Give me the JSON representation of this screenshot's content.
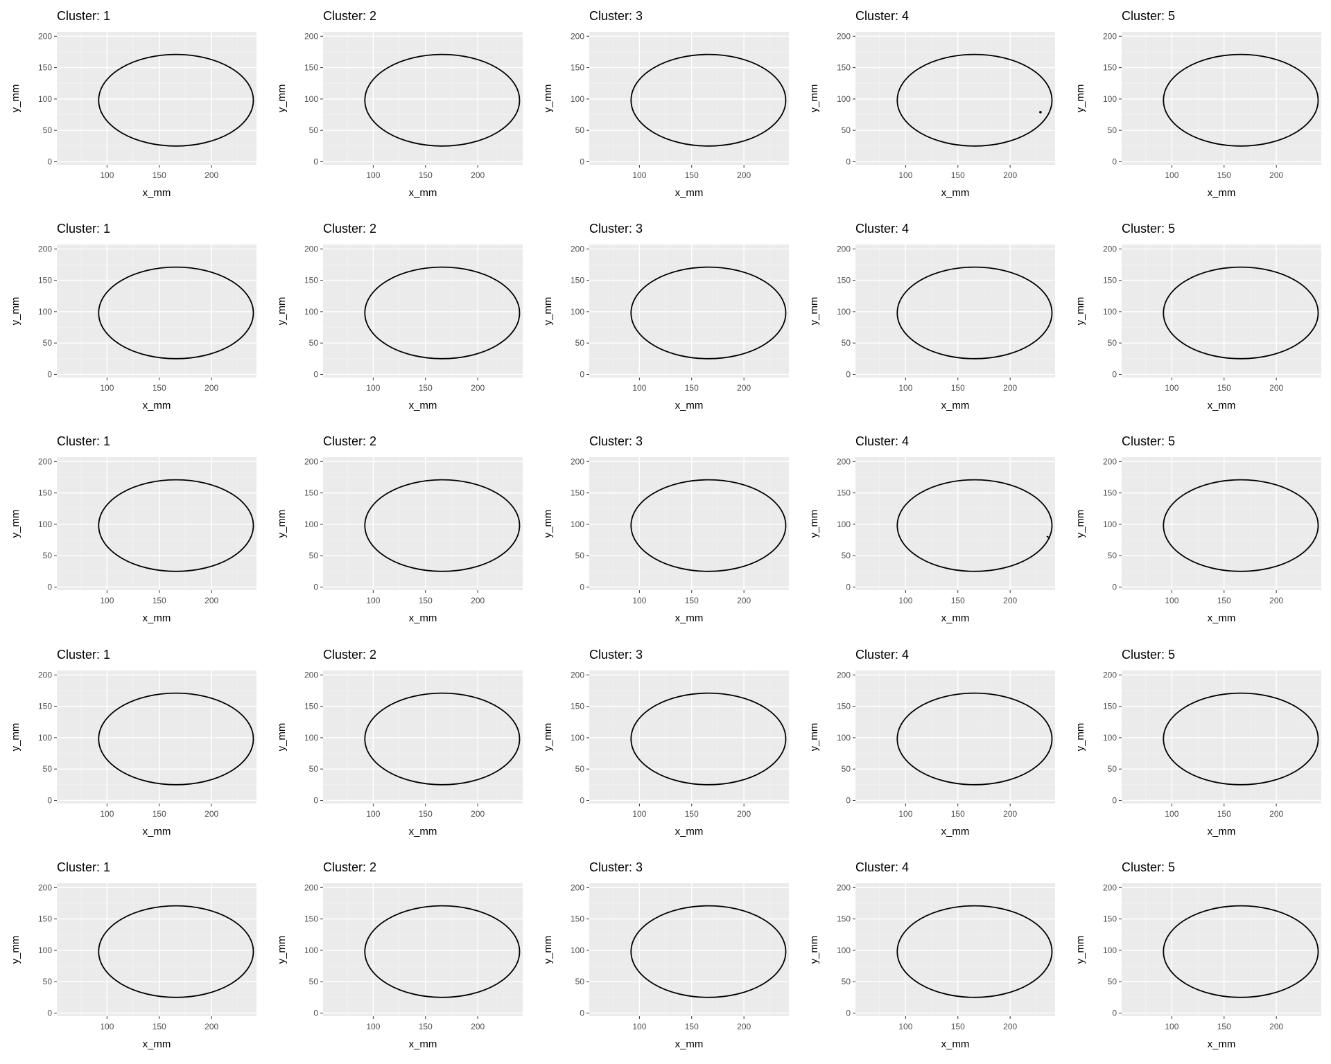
{
  "figure": {
    "background": "#ffffff",
    "panel_background": "#ebebeb",
    "grid_major_color": "#ffffff",
    "grid_minor_color": "#f2f2f2",
    "line_color": "#000000",
    "tick_text_color": "#4d4d4d",
    "rows": 5,
    "cols": 5
  },
  "chart_data": [
    {
      "type": "line",
      "title": "Cluster: 1",
      "xlabel": "x_mm",
      "ylabel": "y_mm",
      "xlim": [
        52,
        243
      ],
      "ylim": [
        -5,
        207
      ],
      "xticks": [
        100,
        150,
        200
      ],
      "yticks": [
        0,
        50,
        100,
        150,
        200
      ],
      "grid": true,
      "series": [
        {
          "shape": "ellipse",
          "center": [
            166,
            98
          ],
          "radius_x": 74,
          "radius_y": 73
        }
      ]
    },
    {
      "type": "line",
      "title": "Cluster: 2",
      "xlabel": "x_mm",
      "ylabel": "y_mm",
      "xlim": [
        52,
        243
      ],
      "ylim": [
        -5,
        207
      ],
      "xticks": [
        100,
        150,
        200
      ],
      "yticks": [
        0,
        50,
        100,
        150,
        200
      ],
      "grid": true,
      "series": [
        {
          "shape": "ellipse",
          "center": [
            166,
            98
          ],
          "radius_x": 74,
          "radius_y": 73
        }
      ]
    },
    {
      "type": "line",
      "title": "Cluster: 3",
      "xlabel": "x_mm",
      "ylabel": "y_mm",
      "xlim": [
        52,
        243
      ],
      "ylim": [
        -5,
        207
      ],
      "xticks": [
        100,
        150,
        200
      ],
      "yticks": [
        0,
        50,
        100,
        150,
        200
      ],
      "grid": true,
      "series": [
        {
          "shape": "ellipse",
          "center": [
            166,
            98
          ],
          "radius_x": 74,
          "radius_y": 73
        }
      ]
    },
    {
      "type": "line",
      "title": "Cluster: 4",
      "xlabel": "x_mm",
      "ylabel": "y_mm",
      "xlim": [
        52,
        243
      ],
      "ylim": [
        -5,
        207
      ],
      "xticks": [
        100,
        150,
        200
      ],
      "yticks": [
        0,
        50,
        100,
        150,
        200
      ],
      "grid": true,
      "series": [
        {
          "shape": "ellipse",
          "center": [
            166,
            98
          ],
          "radius_x": 74,
          "radius_y": 73
        }
      ],
      "extra_points": [
        {
          "x": 229,
          "y": 79
        }
      ]
    },
    {
      "type": "line",
      "title": "Cluster: 5",
      "xlabel": "x_mm",
      "ylabel": "y_mm",
      "xlim": [
        52,
        243
      ],
      "ylim": [
        -5,
        207
      ],
      "xticks": [
        100,
        150,
        200
      ],
      "yticks": [
        0,
        50,
        100,
        150,
        200
      ],
      "grid": true,
      "series": [
        {
          "shape": "ellipse",
          "center": [
            166,
            98
          ],
          "radius_x": 74,
          "radius_y": 73
        }
      ]
    },
    {
      "type": "line",
      "title": "Cluster: 1",
      "xlabel": "x_mm",
      "ylabel": "y_mm",
      "xlim": [
        52,
        243
      ],
      "ylim": [
        -5,
        207
      ],
      "xticks": [
        100,
        150,
        200
      ],
      "yticks": [
        0,
        50,
        100,
        150,
        200
      ],
      "grid": true,
      "series": [
        {
          "shape": "ellipse",
          "center": [
            166,
            98
          ],
          "radius_x": 74,
          "radius_y": 73
        }
      ]
    },
    {
      "type": "line",
      "title": "Cluster: 2",
      "xlabel": "x_mm",
      "ylabel": "y_mm",
      "xlim": [
        52,
        243
      ],
      "ylim": [
        -5,
        207
      ],
      "xticks": [
        100,
        150,
        200
      ],
      "yticks": [
        0,
        50,
        100,
        150,
        200
      ],
      "grid": true,
      "series": [
        {
          "shape": "ellipse",
          "center": [
            166,
            98
          ],
          "radius_x": 74,
          "radius_y": 73
        }
      ]
    },
    {
      "type": "line",
      "title": "Cluster: 3",
      "xlabel": "x_mm",
      "ylabel": "y_mm",
      "xlim": [
        52,
        243
      ],
      "ylim": [
        -5,
        207
      ],
      "xticks": [
        100,
        150,
        200
      ],
      "yticks": [
        0,
        50,
        100,
        150,
        200
      ],
      "grid": true,
      "series": [
        {
          "shape": "ellipse",
          "center": [
            166,
            98
          ],
          "radius_x": 74,
          "radius_y": 73
        }
      ]
    },
    {
      "type": "line",
      "title": "Cluster: 4",
      "xlabel": "x_mm",
      "ylabel": "y_mm",
      "xlim": [
        52,
        243
      ],
      "ylim": [
        -5,
        207
      ],
      "xticks": [
        100,
        150,
        200
      ],
      "yticks": [
        0,
        50,
        100,
        150,
        200
      ],
      "grid": true,
      "series": [
        {
          "shape": "ellipse",
          "center": [
            166,
            98
          ],
          "radius_x": 74,
          "radius_y": 73
        }
      ]
    },
    {
      "type": "line",
      "title": "Cluster: 5",
      "xlabel": "x_mm",
      "ylabel": "y_mm",
      "xlim": [
        52,
        243
      ],
      "ylim": [
        -5,
        207
      ],
      "xticks": [
        100,
        150,
        200
      ],
      "yticks": [
        0,
        50,
        100,
        150,
        200
      ],
      "grid": true,
      "series": [
        {
          "shape": "ellipse",
          "center": [
            166,
            98
          ],
          "radius_x": 74,
          "radius_y": 73
        }
      ]
    },
    {
      "type": "line",
      "title": "Cluster: 1",
      "xlabel": "x_mm",
      "ylabel": "y_mm",
      "xlim": [
        52,
        243
      ],
      "ylim": [
        -5,
        207
      ],
      "xticks": [
        100,
        150,
        200
      ],
      "yticks": [
        0,
        50,
        100,
        150,
        200
      ],
      "grid": true,
      "series": [
        {
          "shape": "ellipse",
          "center": [
            166,
            98
          ],
          "radius_x": 74,
          "radius_y": 73
        }
      ]
    },
    {
      "type": "line",
      "title": "Cluster: 2",
      "xlabel": "x_mm",
      "ylabel": "y_mm",
      "xlim": [
        52,
        243
      ],
      "ylim": [
        -5,
        207
      ],
      "xticks": [
        100,
        150,
        200
      ],
      "yticks": [
        0,
        50,
        100,
        150,
        200
      ],
      "grid": true,
      "series": [
        {
          "shape": "ellipse",
          "center": [
            166,
            98
          ],
          "radius_x": 74,
          "radius_y": 73
        }
      ]
    },
    {
      "type": "line",
      "title": "Cluster: 3",
      "xlabel": "x_mm",
      "ylabel": "y_mm",
      "xlim": [
        52,
        243
      ],
      "ylim": [
        -5,
        207
      ],
      "xticks": [
        100,
        150,
        200
      ],
      "yticks": [
        0,
        50,
        100,
        150,
        200
      ],
      "grid": true,
      "series": [
        {
          "shape": "ellipse",
          "center": [
            166,
            98
          ],
          "radius_x": 74,
          "radius_y": 73
        }
      ]
    },
    {
      "type": "line",
      "title": "Cluster: 4",
      "xlabel": "x_mm",
      "ylabel": "y_mm",
      "xlim": [
        52,
        243
      ],
      "ylim": [
        -5,
        207
      ],
      "xticks": [
        100,
        150,
        200
      ],
      "yticks": [
        0,
        50,
        100,
        150,
        200
      ],
      "grid": true,
      "series": [
        {
          "shape": "ellipse",
          "center": [
            166,
            98
          ],
          "radius_x": 74,
          "radius_y": 73
        }
      ],
      "extra_segments": [
        {
          "x1": 235,
          "y1": 81,
          "x2": 238,
          "y2": 78
        }
      ]
    },
    {
      "type": "line",
      "title": "Cluster: 5",
      "xlabel": "x_mm",
      "ylabel": "y_mm",
      "xlim": [
        52,
        243
      ],
      "ylim": [
        -5,
        207
      ],
      "xticks": [
        100,
        150,
        200
      ],
      "yticks": [
        0,
        50,
        100,
        150,
        200
      ],
      "grid": true,
      "series": [
        {
          "shape": "ellipse",
          "center": [
            166,
            98
          ],
          "radius_x": 74,
          "radius_y": 73
        }
      ]
    },
    {
      "type": "line",
      "title": "Cluster: 1",
      "xlabel": "x_mm",
      "ylabel": "y_mm",
      "xlim": [
        52,
        243
      ],
      "ylim": [
        -5,
        207
      ],
      "xticks": [
        100,
        150,
        200
      ],
      "yticks": [
        0,
        50,
        100,
        150,
        200
      ],
      "grid": true,
      "series": [
        {
          "shape": "ellipse",
          "center": [
            166,
            98
          ],
          "radius_x": 74,
          "radius_y": 73
        }
      ]
    },
    {
      "type": "line",
      "title": "Cluster: 2",
      "xlabel": "x_mm",
      "ylabel": "y_mm",
      "xlim": [
        52,
        243
      ],
      "ylim": [
        -5,
        207
      ],
      "xticks": [
        100,
        150,
        200
      ],
      "yticks": [
        0,
        50,
        100,
        150,
        200
      ],
      "grid": true,
      "series": [
        {
          "shape": "ellipse",
          "center": [
            166,
            98
          ],
          "radius_x": 74,
          "radius_y": 73
        }
      ]
    },
    {
      "type": "line",
      "title": "Cluster: 3",
      "xlabel": "x_mm",
      "ylabel": "y_mm",
      "xlim": [
        52,
        243
      ],
      "ylim": [
        -5,
        207
      ],
      "xticks": [
        100,
        150,
        200
      ],
      "yticks": [
        0,
        50,
        100,
        150,
        200
      ],
      "grid": true,
      "series": [
        {
          "shape": "ellipse",
          "center": [
            166,
            98
          ],
          "radius_x": 74,
          "radius_y": 73
        }
      ]
    },
    {
      "type": "line",
      "title": "Cluster: 4",
      "xlabel": "x_mm",
      "ylabel": "y_mm",
      "xlim": [
        52,
        243
      ],
      "ylim": [
        -5,
        207
      ],
      "xticks": [
        100,
        150,
        200
      ],
      "yticks": [
        0,
        50,
        100,
        150,
        200
      ],
      "grid": true,
      "series": [
        {
          "shape": "ellipse",
          "center": [
            166,
            98
          ],
          "radius_x": 74,
          "radius_y": 73
        }
      ]
    },
    {
      "type": "line",
      "title": "Cluster: 5",
      "xlabel": "x_mm",
      "ylabel": "y_mm",
      "xlim": [
        52,
        243
      ],
      "ylim": [
        -5,
        207
      ],
      "xticks": [
        100,
        150,
        200
      ],
      "yticks": [
        0,
        50,
        100,
        150,
        200
      ],
      "grid": true,
      "series": [
        {
          "shape": "ellipse",
          "center": [
            166,
            98
          ],
          "radius_x": 74,
          "radius_y": 73
        }
      ]
    },
    {
      "type": "line",
      "title": "Cluster: 1",
      "xlabel": "x_mm",
      "ylabel": "y_mm",
      "xlim": [
        52,
        243
      ],
      "ylim": [
        -5,
        207
      ],
      "xticks": [
        100,
        150,
        200
      ],
      "yticks": [
        0,
        50,
        100,
        150,
        200
      ],
      "grid": true,
      "series": [
        {
          "shape": "ellipse",
          "center": [
            166,
            98
          ],
          "radius_x": 74,
          "radius_y": 73
        }
      ]
    },
    {
      "type": "line",
      "title": "Cluster: 2",
      "xlabel": "x_mm",
      "ylabel": "y_mm",
      "xlim": [
        52,
        243
      ],
      "ylim": [
        -5,
        207
      ],
      "xticks": [
        100,
        150,
        200
      ],
      "yticks": [
        0,
        50,
        100,
        150,
        200
      ],
      "grid": true,
      "series": [
        {
          "shape": "ellipse",
          "center": [
            166,
            98
          ],
          "radius_x": 74,
          "radius_y": 73
        }
      ]
    },
    {
      "type": "line",
      "title": "Cluster: 3",
      "xlabel": "x_mm",
      "ylabel": "y_mm",
      "xlim": [
        52,
        243
      ],
      "ylim": [
        -5,
        207
      ],
      "xticks": [
        100,
        150,
        200
      ],
      "yticks": [
        0,
        50,
        100,
        150,
        200
      ],
      "grid": true,
      "series": [
        {
          "shape": "ellipse",
          "center": [
            166,
            98
          ],
          "radius_x": 74,
          "radius_y": 73
        }
      ]
    },
    {
      "type": "line",
      "title": "Cluster: 4",
      "xlabel": "x_mm",
      "ylabel": "y_mm",
      "xlim": [
        52,
        243
      ],
      "ylim": [
        -5,
        207
      ],
      "xticks": [
        100,
        150,
        200
      ],
      "yticks": [
        0,
        50,
        100,
        150,
        200
      ],
      "grid": true,
      "series": [
        {
          "shape": "ellipse",
          "center": [
            166,
            98
          ],
          "radius_x": 74,
          "radius_y": 73
        }
      ]
    },
    {
      "type": "line",
      "title": "Cluster: 5",
      "xlabel": "x_mm",
      "ylabel": "y_mm",
      "xlim": [
        52,
        243
      ],
      "ylim": [
        -5,
        207
      ],
      "xticks": [
        100,
        150,
        200
      ],
      "yticks": [
        0,
        50,
        100,
        150,
        200
      ],
      "grid": true,
      "series": [
        {
          "shape": "ellipse",
          "center": [
            166,
            98
          ],
          "radius_x": 74,
          "radius_y": 73
        }
      ]
    }
  ]
}
